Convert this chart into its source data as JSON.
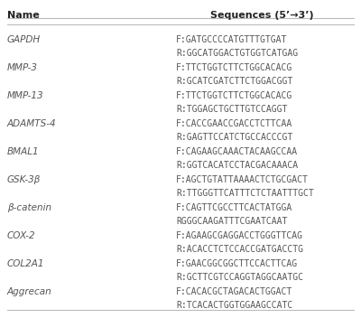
{
  "title_name": "Name",
  "title_seq": "Sequences (5’→3’)",
  "background_color": "#ffffff",
  "header_line_color": "#bbbbbb",
  "text_color": "#555555",
  "header_text_color": "#222222",
  "rows": [
    {
      "name": "GAPDH",
      "sequences": [
        "F:GATGCCCCATGTTTGTGAT",
        "R:GGCATGGACTGTGGTCATGAG"
      ]
    },
    {
      "name": "MMP-3",
      "sequences": [
        "F:TTCTGGTCTTCTGGCACACG",
        "R:GCATCGATCTTCTGGACGGT"
      ]
    },
    {
      "name": "MMP-13",
      "sequences": [
        "F:TTCTGGTCTTCTGGCACACG",
        "R:TGGAGCTGCTTGTCCAGGT"
      ]
    },
    {
      "name": "ADAMTS-4",
      "sequences": [
        "F:CACCGAACCGACCTCTTCAA",
        "R:GAGTTCCATCTGCCACCCGT"
      ]
    },
    {
      "name": "BMAL1",
      "sequences": [
        "F:CAGAAGCAAACTACAAGCCAA",
        "R:GGTCACATCCTACGACAAACA"
      ]
    },
    {
      "name": "GSK-3β",
      "sequences": [
        "F:AGCTGTATTAAAACTCTGCGACT",
        "R:TTGGGTTCATTTCTCTAATTTGCT"
      ]
    },
    {
      "name": "β-catenin",
      "sequences": [
        "F:CAGTTCGCCTTCACTATGGA",
        "RGGGCAAGATTTCGAATCAAT"
      ]
    },
    {
      "name": "COX-2",
      "sequences": [
        "F:AGAAGCGAGGACCTGGGTTCAG",
        "R:ACACCTCTCCACCGATGACCTG"
      ]
    },
    {
      "name": "COL2A1",
      "sequences": [
        "F:GAACGGCGGCTTCCACTTCAG",
        "R:GCTTCGTCCAGGTAGGCAATGC"
      ]
    },
    {
      "name": "Aggrecan",
      "sequences": [
        "F:CACACGCTAGACACTGGACT",
        "R:TCACACTGGTGGAAGCCATC"
      ]
    }
  ]
}
